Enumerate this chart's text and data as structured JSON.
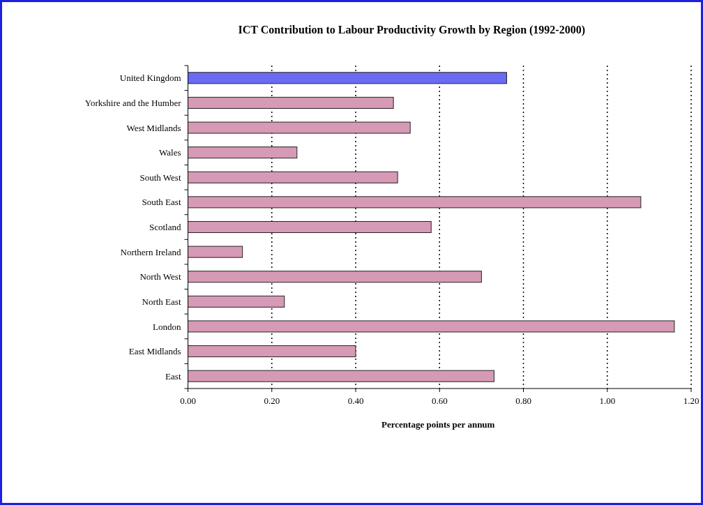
{
  "chart_data": {
    "type": "bar",
    "orientation": "horizontal",
    "title": "ICT Contribution to Labour Productivity Growth by Region (1992-2000)",
    "xlabel": "Percentage points per annum",
    "categories": [
      "United Kingdom",
      "Yorkshire and the Humber",
      "West Midlands",
      "Wales",
      "South West",
      "South East",
      "Scotland",
      "Northern Ireland",
      "North West",
      "North East",
      "London",
      "East Midlands",
      "East"
    ],
    "values": [
      0.76,
      0.49,
      0.53,
      0.26,
      0.5,
      1.08,
      0.58,
      0.13,
      0.7,
      0.23,
      1.16,
      0.4,
      0.73
    ],
    "colors": [
      "#6a6af2",
      "#d69ab6",
      "#d69ab6",
      "#d69ab6",
      "#d69ab6",
      "#d69ab6",
      "#d69ab6",
      "#d69ab6",
      "#d69ab6",
      "#d69ab6",
      "#d69ab6",
      "#d69ab6",
      "#d69ab6"
    ],
    "xlim": [
      0,
      1.2
    ],
    "xticks": [
      {
        "value": 0,
        "label": "0.00"
      },
      {
        "value": 0.2,
        "label": "0.20"
      },
      {
        "value": 0.4,
        "label": "0.40"
      },
      {
        "value": 0.6,
        "label": "0.60"
      },
      {
        "value": 0.8,
        "label": "0.80"
      },
      {
        "value": 1,
        "label": "1.00"
      },
      {
        "value": 1.2,
        "label": "1.20"
      }
    ],
    "grid": "x"
  }
}
